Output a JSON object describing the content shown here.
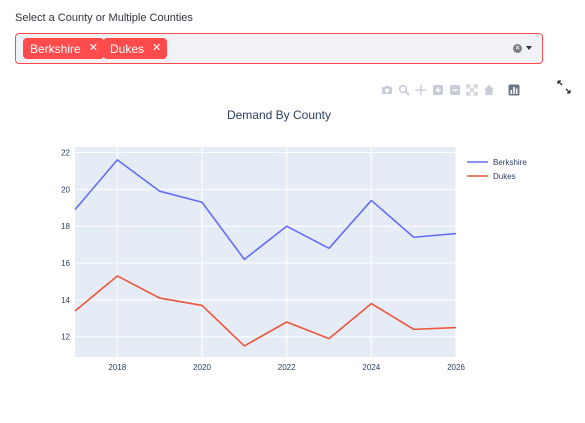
{
  "select": {
    "label": "Select a County or Multiple Counties",
    "selected": [
      {
        "label": "Berkshire"
      },
      {
        "label": "Dukes"
      }
    ],
    "clear_glyph": "×",
    "remove_glyph": "✕"
  },
  "toolbar": {
    "icons": [
      "camera-icon",
      "zoom-icon",
      "pan-icon",
      "zoom-in-icon",
      "zoom-out-icon",
      "autoscale-icon",
      "reset-axes-icon",
      "plotly-logo-icon"
    ],
    "fullscreen_icon": "fullscreen-icon"
  },
  "chart_data": {
    "type": "line",
    "title": "Demand By County",
    "xlabel": "",
    "ylabel": "",
    "xlim": [
      2017,
      2026
    ],
    "ylim": [
      10.9,
      22.3
    ],
    "xticks": [
      2018,
      2020,
      2022,
      2024,
      2026
    ],
    "yticks": [
      12,
      14,
      16,
      18,
      20,
      22
    ],
    "grid": true,
    "legend_position": "top-right",
    "x": [
      2017,
      2018,
      2019,
      2020,
      2021,
      2022,
      2023,
      2024,
      2025,
      2026
    ],
    "series": [
      {
        "name": "Berkshire",
        "color": "#636efa",
        "values": [
          18.9,
          21.6,
          19.9,
          19.3,
          16.2,
          18.0,
          16.8,
          19.4,
          17.4,
          17.6
        ]
      },
      {
        "name": "Dukes",
        "color": "#ef553b",
        "values": [
          13.4,
          15.3,
          14.1,
          13.7,
          11.5,
          12.8,
          11.9,
          13.8,
          12.4,
          12.5
        ]
      }
    ]
  }
}
